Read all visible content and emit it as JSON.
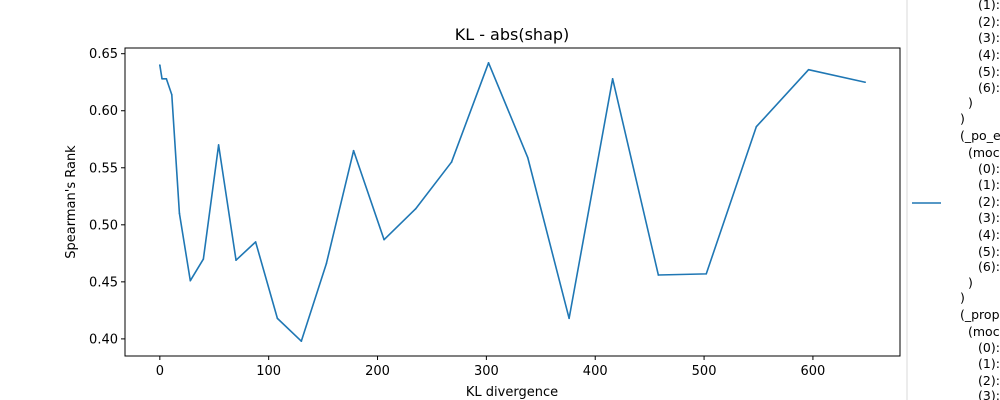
{
  "chart_data": {
    "type": "line",
    "title": "KL - abs(shap)",
    "xlabel": "KL divergence",
    "ylabel": "Spearman's Rank",
    "xlim": [
      -32,
      680
    ],
    "ylim": [
      0.385,
      0.655
    ],
    "xticks": [
      0,
      100,
      200,
      300,
      400,
      500,
      600
    ],
    "yticks": [
      0.4,
      0.45,
      0.5,
      0.55,
      0.6,
      0.65
    ],
    "grid": false,
    "color": "#1f77b4",
    "series": [
      {
        "x": [
          0,
          2,
          6,
          11,
          18,
          28,
          40,
          54,
          70,
          88,
          108,
          130,
          153,
          178,
          206,
          235,
          268,
          302,
          338,
          376,
          416,
          458,
          502,
          548,
          596,
          648
        ],
        "y": [
          0.64,
          0.628,
          0.628,
          0.614,
          0.51,
          0.451,
          0.47,
          0.57,
          0.469,
          0.485,
          0.418,
          0.398,
          0.466,
          0.565,
          0.487,
          0.514,
          0.555,
          0.642,
          0.559,
          0.418,
          0.628,
          0.456,
          0.457,
          0.586,
          0.636,
          0.625
        ]
      }
    ]
  },
  "legend_text": [
    "(1):",
    "(2):",
    "(3):",
    "(4):",
    "(5):",
    "(6):",
    ")",
    ")",
    "(_po_e",
    "(moc",
    "(0):",
    "(1):",
    "(2):",
    "(3):",
    "(4):",
    "(5):",
    "(6):",
    ")",
    ")",
    "(_prop",
    "(moc",
    "(0):",
    "(1):",
    "(2):",
    "(3):"
  ]
}
